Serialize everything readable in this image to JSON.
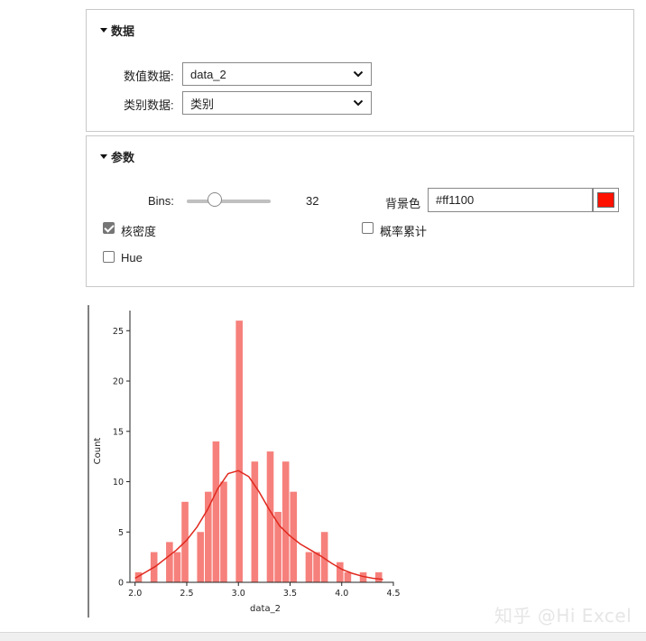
{
  "data_panel": {
    "title": "数据",
    "numeric_label": "数值数据:",
    "numeric_value": "data_2",
    "category_label": "类别数据:",
    "category_value": "类别"
  },
  "params_panel": {
    "title": "参数",
    "bins_label": "Bins:",
    "bins_value": "32",
    "bins_fraction": 0.33,
    "bg_label": "背景色",
    "bg_color_text": "#ff1100",
    "bg_color": "#ff1100",
    "kde_label": "核密度",
    "kde_checked": true,
    "cumulative_label": "概率累计",
    "cumulative_checked": false,
    "hue_label": "Hue",
    "hue_checked": false
  },
  "watermark": "知乎 @Hi Excel",
  "chart_data": {
    "type": "bar",
    "xlabel": "data_2",
    "ylabel": "Count",
    "xlim": [
      1.95,
      4.5
    ],
    "ylim": [
      0,
      27
    ],
    "xticks": [
      "2.0",
      "2.5",
      "3.0",
      "3.5",
      "4.0",
      "4.5"
    ],
    "xtick_values": [
      2.0,
      2.5,
      3.0,
      3.5,
      4.0,
      4.5
    ],
    "yticks": [
      "0",
      "5",
      "10",
      "15",
      "20",
      "25"
    ],
    "ytick_values": [
      0,
      5,
      10,
      15,
      20,
      25
    ],
    "bin_start": 2.0,
    "bin_width": 0.075,
    "counts": [
      1,
      0,
      3,
      0,
      4,
      3,
      8,
      0,
      5,
      9,
      14,
      10,
      0,
      26,
      0,
      12,
      0,
      13,
      7,
      12,
      9,
      0,
      3,
      3,
      5,
      0,
      2,
      1,
      0,
      1,
      0,
      1
    ],
    "bar_color": "#f6807b",
    "kde_color": "#e0291f",
    "kde": {
      "x": [
        2.0,
        2.1,
        2.2,
        2.3,
        2.4,
        2.5,
        2.6,
        2.7,
        2.8,
        2.9,
        3.0,
        3.1,
        3.2,
        3.3,
        3.4,
        3.5,
        3.6,
        3.7,
        3.8,
        3.9,
        4.0,
        4.1,
        4.2,
        4.3,
        4.4
      ],
      "y": [
        0.4,
        1.0,
        1.6,
        2.4,
        3.2,
        4.2,
        5.5,
        7.2,
        9.3,
        10.8,
        11.1,
        10.5,
        9.0,
        7.2,
        5.6,
        4.6,
        3.8,
        3.2,
        2.6,
        1.9,
        1.3,
        0.9,
        0.6,
        0.4,
        0.3
      ]
    },
    "spines": "left-bottom",
    "grid": false
  }
}
